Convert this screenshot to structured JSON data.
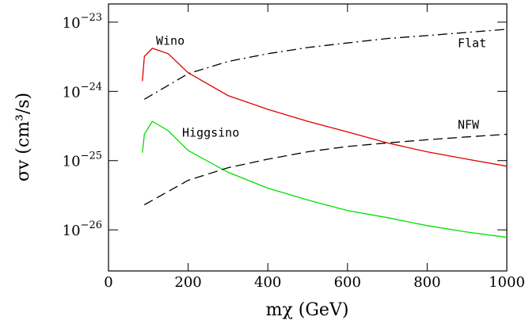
{
  "chart_data": {
    "type": "line",
    "y_label": "σv (cm³/s)",
    "x_label": "mχ (GeV)",
    "xlim": [
      0,
      1000
    ],
    "xticks": [
      0,
      200,
      400,
      600,
      800,
      1000
    ],
    "ylim": [
      2.55e-27,
      1.83e-23
    ],
    "log_y": true,
    "yticks": [
      {
        "value": 1e-23,
        "label": "10−23"
      },
      {
        "value": 1e-24,
        "label": "10−24"
      },
      {
        "value": 1e-25,
        "label": "10−25"
      },
      {
        "value": 1e-26,
        "label": "10−26"
      }
    ],
    "series": [
      {
        "name": "Wino",
        "color": "#e00000",
        "line_style": "solid",
        "x": [
          85,
          90,
          110,
          150,
          200,
          300,
          400,
          500,
          600,
          700,
          800,
          900,
          1000
        ],
        "values": [
          1.41e-24,
          3.2e-24,
          4.2e-24,
          3.5e-24,
          1.86e-24,
          8.7e-25,
          5.5e-25,
          3.7e-25,
          2.6e-25,
          1.8e-25,
          1.34e-25,
          1.05e-25,
          8.3e-26
        ]
      },
      {
        "name": "Higgsino",
        "color": "#00e000",
        "line_style": "solid",
        "x": [
          85,
          90,
          110,
          150,
          200,
          300,
          400,
          500,
          600,
          700,
          800,
          900,
          1000
        ],
        "values": [
          1.3e-25,
          2.4e-25,
          3.7e-25,
          2.7e-25,
          1.4e-25,
          6.8e-26,
          4e-26,
          2.7e-26,
          1.9e-26,
          1.5e-26,
          1.15e-26,
          9.3e-27,
          7.8e-27
        ]
      },
      {
        "name": "Flat",
        "color": "#000000",
        "line_style": "dashdot",
        "x": [
          90,
          200,
          300,
          400,
          500,
          600,
          700,
          800,
          900,
          1000
        ],
        "values": [
          7.7e-25,
          1.8e-24,
          2.7e-24,
          3.5e-24,
          4.3e-24,
          5e-24,
          5.8e-24,
          6.4e-24,
          7.1e-24,
          7.9e-24
        ]
      },
      {
        "name": "NFW",
        "color": "#000000",
        "line_style": "dashed",
        "x": [
          90,
          200,
          300,
          400,
          500,
          600,
          700,
          800,
          900,
          1000
        ],
        "values": [
          2.3e-26,
          5.2e-26,
          7.9e-26,
          1.05e-25,
          1.34e-25,
          1.6e-25,
          1.8e-25,
          2e-25,
          2.2e-25,
          2.4e-25
        ]
      }
    ]
  }
}
